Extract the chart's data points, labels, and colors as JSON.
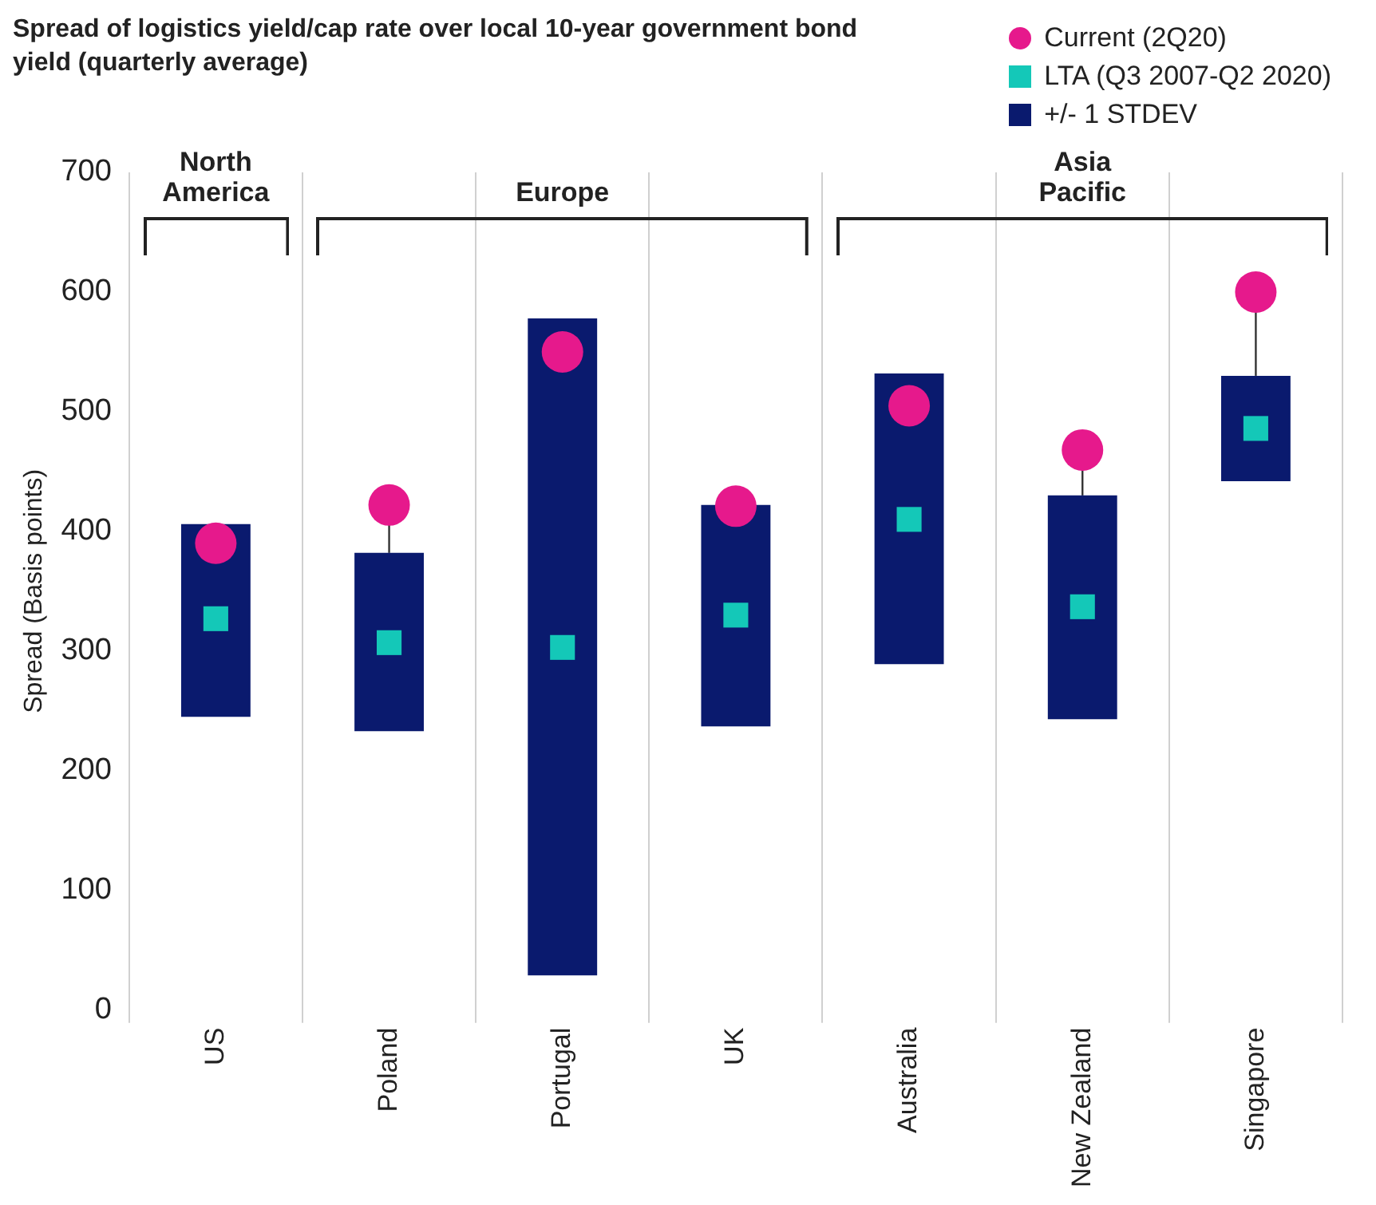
{
  "chart_data": {
    "type": "bar",
    "title": "Spread of logistics yield/cap rate over local 10-year government bond yield (quarterly average)",
    "ylabel": "Spread (Basis points)",
    "categories": [
      "US",
      "Poland",
      "Portugal",
      "UK",
      "Australia",
      "New Zealand",
      "Singapore"
    ],
    "series": [
      {
        "name": "+/- 1 STDEV",
        "color": "#0a1a6e",
        "base": [
          245,
          233,
          29,
          237,
          289,
          243,
          442
        ],
        "values": [
          161,
          149,
          549,
          185,
          243,
          187,
          88
        ]
      },
      {
        "name": "LTA (Q3 2007-Q2 2020)",
        "type": "scatter",
        "marker": "square",
        "color": "#14c8b8",
        "values": [
          327,
          307,
          303,
          330,
          410,
          337,
          486
        ]
      },
      {
        "name": "Current (2Q20)",
        "type": "scatter",
        "marker": "circle",
        "color": "#e6198c",
        "values": [
          390,
          422,
          550,
          421,
          505,
          468,
          600
        ],
        "errors": [
          null,
          [
            382,
            422
          ],
          null,
          null,
          null,
          [
            430,
            468
          ],
          [
            530,
            600
          ]
        ]
      }
    ],
    "ylim": [
      0,
      700
    ],
    "yticks": [
      0,
      100,
      200,
      300,
      400,
      500,
      600,
      700
    ],
    "grid": "x",
    "legend": "top right",
    "annotations": [
      "North America",
      "Europe",
      "Asia Pacific"
    ]
  }
}
